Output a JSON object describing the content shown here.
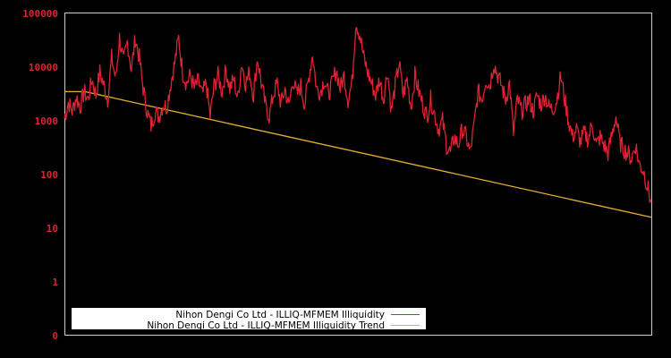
{
  "chart_data": {
    "type": "line",
    "title": "",
    "xlabel": "",
    "ylabel": "",
    "yscale": "log",
    "ylim": [
      0,
      100000
    ],
    "y_ticks": [
      "100000",
      "10000",
      "1000",
      "100",
      "10",
      "1",
      "0"
    ],
    "x_ticks": [],
    "grid": false,
    "legend_position": "lower-left",
    "background": "#000000",
    "axis_color": "#cccccc",
    "tick_color": "#dd2233",
    "series": [
      {
        "name": "Nihon Dengi Co Ltd - ILLIQ-MFMEM Illiquidity",
        "color": "#dd2233",
        "values": [
          1100,
          2200,
          1500,
          2800,
          1800,
          3500,
          2500,
          6000,
          3000,
          8000,
          4500,
          2500,
          15000,
          6000,
          35000,
          12000,
          30000,
          9000,
          35000,
          15000,
          4000,
          1500,
          800,
          1500,
          1200,
          2000,
          1800,
          5000,
          12000,
          35000,
          8000,
          5000,
          7000,
          4000,
          5500,
          3000,
          5000,
          1200,
          4500,
          7000,
          3500,
          9000,
          4000,
          6000,
          2500,
          12000,
          5000,
          8000,
          3000,
          15000,
          5000,
          2000,
          1200,
          3000,
          5000,
          2000,
          4000,
          1800,
          6000,
          3000,
          4500,
          2000,
          6000,
          18000,
          4000,
          3500,
          6000,
          3000,
          5000,
          9000,
          4000,
          7000,
          2500,
          5000,
          70000,
          40000,
          15000,
          8000,
          5000,
          3000,
          6000,
          2500,
          9000,
          1500,
          4500,
          12000,
          3000,
          6000,
          1800,
          7000,
          3500,
          2000,
          1200,
          2500,
          1300,
          700,
          1000,
          350,
          250,
          500,
          350,
          700,
          500,
          250,
          800,
          3500,
          2500,
          6000,
          4500,
          12000,
          7000,
          4500,
          2500,
          5000,
          600,
          2500,
          1500,
          2000,
          2500,
          1500,
          3000,
          2000,
          3000,
          1800,
          1600,
          2500,
          7000,
          2500,
          1000,
          500,
          700,
          400,
          600,
          450,
          900,
          350,
          500,
          350,
          250,
          550,
          1200,
          400,
          300,
          250,
          200,
          350,
          150,
          120,
          60,
          30
        ]
      },
      {
        "name": "Nihon Dengi Co Ltd - ILLIQ-MFMEM Illiquidity Trend",
        "color": "#e8b030",
        "start_value": 3500,
        "end_value": 16
      }
    ]
  },
  "legend": {
    "items": [
      {
        "label": "Nihon Dengi Co Ltd - ILLIQ-MFMEM Illiquidity",
        "color": "#dd2233"
      },
      {
        "label": "Nihon Dengi Co Ltd - ILLIQ-MFMEM Illiquidity Trend",
        "color": "#e8b030"
      }
    ]
  }
}
